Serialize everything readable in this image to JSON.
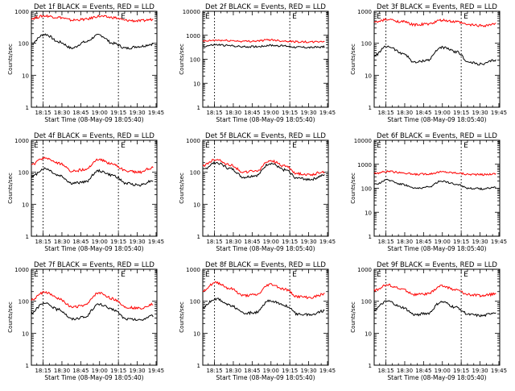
{
  "chart_data": [
    {
      "type": "line",
      "title": "Det 1f BLACK = Events, RED = LLD",
      "xlabel": "Start Time (08-May-09 18:05:40)",
      "ylabel": "Counts/sec",
      "marker": "E",
      "ylim": [
        1,
        1000
      ],
      "yscale": "log",
      "x_ticks": [
        "18:15",
        "18:30",
        "18:45",
        "19:00",
        "19:15",
        "19:30",
        "19:45"
      ],
      "y_ticks": [
        "1",
        "10",
        "100",
        "1000"
      ],
      "x_range_minutes": [
        5.67,
        105.67
      ],
      "vlines_minutes": [
        15,
        75
      ],
      "series": [
        {
          "name": "Events",
          "color": "#000000",
          "values": [
            100,
            190,
            110,
            70,
            110,
            180,
            100,
            70,
            80,
            95
          ]
        },
        {
          "name": "LLD",
          "color": "#ff0000",
          "values": [
            600,
            720,
            650,
            530,
            560,
            700,
            640,
            520,
            500,
            560
          ]
        }
      ]
    },
    {
      "type": "line",
      "title": "Det 2f BLACK = Events, RED = LLD",
      "xlabel": "Start Time (08-May-09 18:05:40)",
      "ylabel": "Counts/sec",
      "marker": "E",
      "ylim": [
        1,
        10000
      ],
      "yscale": "log",
      "x_ticks": [
        "18:15",
        "18:30",
        "18:45",
        "19:00",
        "19:15",
        "19:30",
        "19:45"
      ],
      "y_ticks": [
        "1",
        "10",
        "100",
        "1000",
        "10000"
      ],
      "x_range_minutes": [
        5.67,
        105.67
      ],
      "vlines_minutes": [
        15,
        75
      ],
      "series": [
        {
          "name": "Events",
          "color": "#000000",
          "values": [
            350,
            400,
            370,
            330,
            340,
            380,
            360,
            320,
            310,
            330
          ]
        },
        {
          "name": "LLD",
          "color": "#ff0000",
          "values": [
            560,
            620,
            600,
            560,
            580,
            650,
            580,
            540,
            520,
            560
          ]
        }
      ]
    },
    {
      "type": "line",
      "title": "Det 3f BLACK = Events, RED = LLD",
      "xlabel": "Start Time (08-May-09 18:05:40)",
      "ylabel": "Counts/sec",
      "marker": "E",
      "ylim": [
        1,
        1000
      ],
      "yscale": "log",
      "x_ticks": [
        "18:15",
        "18:30",
        "18:45",
        "19:00",
        "19:15",
        "19:30",
        "19:45"
      ],
      "y_ticks": [
        "1",
        "10",
        "100",
        "1000"
      ],
      "x_range_minutes": [
        5.67,
        105.67
      ],
      "vlines_minutes": [
        15,
        75
      ],
      "series": [
        {
          "name": "Events",
          "color": "#000000",
          "values": [
            40,
            80,
            50,
            25,
            30,
            75,
            55,
            25,
            22,
            30
          ]
        },
        {
          "name": "LLD",
          "color": "#ff0000",
          "values": [
            450,
            550,
            480,
            380,
            400,
            520,
            470,
            380,
            360,
            400
          ]
        }
      ]
    },
    {
      "type": "line",
      "title": "Det 4f BLACK = Events, RED = LLD",
      "xlabel": "Start Time (08-May-09 18:05:40)",
      "ylabel": "Counts/sec",
      "marker": "E",
      "ylim": [
        1,
        1000
      ],
      "yscale": "log",
      "x_ticks": [
        "18:15",
        "18:30",
        "18:45",
        "19:00",
        "19:15",
        "19:30",
        "19:45"
      ],
      "y_ticks": [
        "1",
        "10",
        "100",
        "1000"
      ],
      "x_range_minutes": [
        5.67,
        105.67
      ],
      "vlines_minutes": [
        15,
        75
      ],
      "series": [
        {
          "name": "Events",
          "color": "#000000",
          "values": [
            70,
            130,
            80,
            45,
            50,
            110,
            80,
            45,
            40,
            55
          ]
        },
        {
          "name": "LLD",
          "color": "#ff0000",
          "values": [
            170,
            280,
            190,
            110,
            120,
            250,
            180,
            110,
            100,
            140
          ]
        }
      ]
    },
    {
      "type": "line",
      "title": "Det 5f BLACK = Events, RED = LLD",
      "xlabel": "Start Time (08-May-09 18:05:40)",
      "ylabel": "Counts/sec",
      "marker": "E",
      "ylim": [
        1,
        1000
      ],
      "yscale": "log",
      "x_ticks": [
        "18:15",
        "18:30",
        "18:45",
        "19:00",
        "19:15",
        "19:30",
        "19:45"
      ],
      "y_ticks": [
        "1",
        "10",
        "100",
        "1000"
      ],
      "x_range_minutes": [
        5.67,
        105.67
      ],
      "vlines_minutes": [
        15,
        75
      ],
      "series": [
        {
          "name": "Events",
          "color": "#000000",
          "values": [
            120,
            200,
            130,
            70,
            80,
            190,
            120,
            65,
            60,
            80
          ]
        },
        {
          "name": "LLD",
          "color": "#ff0000",
          "values": [
            160,
            250,
            170,
            100,
            110,
            230,
            160,
            90,
            85,
            105
          ]
        }
      ]
    },
    {
      "type": "line",
      "title": "Det 6f BLACK = Events, RED = LLD",
      "xlabel": "Start Time (08-May-09 18:05:40)",
      "ylabel": "Counts/sec",
      "marker": "E",
      "ylim": [
        1,
        10000
      ],
      "yscale": "log",
      "x_ticks": [
        "18:15",
        "18:30",
        "18:45",
        "19:00",
        "19:15",
        "19:30",
        "19:45"
      ],
      "y_ticks": [
        "1",
        "10",
        "100",
        "1000",
        "10000"
      ],
      "x_range_minutes": [
        5.67,
        105.67
      ],
      "vlines_minutes": [
        15,
        75
      ],
      "series": [
        {
          "name": "Events",
          "color": "#000000",
          "values": [
            140,
            220,
            150,
            100,
            110,
            200,
            150,
            100,
            95,
            110
          ]
        },
        {
          "name": "LLD",
          "color": "#ff0000",
          "values": [
            420,
            500,
            450,
            380,
            400,
            480,
            440,
            380,
            370,
            400
          ]
        }
      ]
    },
    {
      "type": "line",
      "title": "Det 7f BLACK = Events, RED = LLD",
      "xlabel": "Start Time (08-May-09 18:05:40)",
      "ylabel": "Counts/sec",
      "marker": "E",
      "ylim": [
        1,
        1000
      ],
      "yscale": "log",
      "x_ticks": [
        "18:15",
        "18:30",
        "18:45",
        "19:00",
        "19:15",
        "19:30",
        "19:45"
      ],
      "y_ticks": [
        "1",
        "10",
        "100",
        "1000"
      ],
      "x_range_minutes": [
        5.67,
        105.67
      ],
      "vlines_minutes": [
        15,
        75
      ],
      "series": [
        {
          "name": "Events",
          "color": "#000000",
          "values": [
            45,
            85,
            55,
            28,
            32,
            80,
            55,
            28,
            26,
            35
          ]
        },
        {
          "name": "LLD",
          "color": "#ff0000",
          "values": [
            110,
            190,
            120,
            65,
            75,
            180,
            120,
            65,
            60,
            80
          ]
        }
      ]
    },
    {
      "type": "line",
      "title": "Det 8f BLACK = Events, RED = LLD",
      "xlabel": "Start Time (08-May-09 18:05:40)",
      "ylabel": "Counts/sec",
      "marker": "E",
      "ylim": [
        1,
        1000
      ],
      "yscale": "log",
      "x_ticks": [
        "18:15",
        "18:30",
        "18:45",
        "19:00",
        "19:15",
        "19:30",
        "19:45"
      ],
      "y_ticks": [
        "1",
        "10",
        "100",
        "1000"
      ],
      "x_range_minutes": [
        5.67,
        105.67
      ],
      "vlines_minutes": [
        15,
        75
      ],
      "series": [
        {
          "name": "Events",
          "color": "#000000",
          "values": [
            65,
            120,
            75,
            42,
            45,
            105,
            75,
            40,
            38,
            50
          ]
        },
        {
          "name": "LLD",
          "color": "#ff0000",
          "values": [
            220,
            380,
            250,
            150,
            160,
            340,
            240,
            140,
            130,
            170
          ]
        }
      ]
    },
    {
      "type": "line",
      "title": "Det 9f BLACK = Events, RED = LLD",
      "xlabel": "Start Time (08-May-09 18:05:40)",
      "ylabel": "Counts/sec",
      "marker": "E",
      "ylim": [
        1,
        1000
      ],
      "yscale": "log",
      "x_ticks": [
        "18:15",
        "18:30",
        "18:45",
        "19:00",
        "19:15",
        "19:30",
        "19:45"
      ],
      "y_ticks": [
        "1",
        "10",
        "100",
        "1000"
      ],
      "x_range_minutes": [
        5.67,
        105.67
      ],
      "vlines_minutes": [
        15,
        75
      ],
      "series": [
        {
          "name": "Events",
          "color": "#000000",
          "values": [
            55,
            100,
            65,
            38,
            42,
            95,
            65,
            38,
            35,
            45
          ]
        },
        {
          "name": "LLD",
          "color": "#ff0000",
          "values": [
            220,
            320,
            240,
            160,
            170,
            300,
            230,
            160,
            150,
            170
          ]
        }
      ]
    }
  ]
}
